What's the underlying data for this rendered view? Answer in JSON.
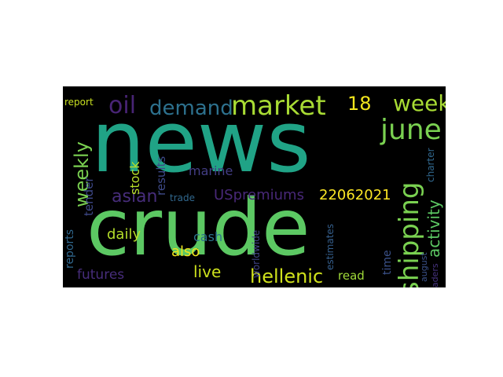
{
  "words": {
    "news": {
      "text": "news",
      "color": "#20a386"
    },
    "crude": {
      "text": "crude",
      "color": "#5cc863"
    },
    "market": {
      "text": "market",
      "color": "#a8db34"
    },
    "june": {
      "text": "june",
      "color": "#7ad151"
    },
    "shipping": {
      "text": "shipping",
      "color": "#7ad151"
    },
    "week": {
      "text": "week",
      "color": "#a8db34"
    },
    "weekly": {
      "text": "weekly",
      "color": "#7ad151"
    },
    "oil": {
      "text": "oil",
      "color": "#482475"
    },
    "demand": {
      "text": "demand",
      "color": "#2d718e"
    },
    "n18": {
      "text": "18",
      "color": "#f1e51d"
    },
    "activity": {
      "text": "activity",
      "color": "#5cc863"
    },
    "asian": {
      "text": "asian",
      "color": "#472d7b"
    },
    "uspremiums": {
      "text": "USpremiums",
      "color": "#482878"
    },
    "n22062021": {
      "text": "22062021",
      "color": "#fde725"
    },
    "hellenic": {
      "text": "hellenic",
      "color": "#d0e11c"
    },
    "live": {
      "text": "live",
      "color": "#cde11d"
    },
    "also": {
      "text": "also",
      "color": "#f1e51d"
    },
    "daily": {
      "text": "daily",
      "color": "#b5de2b"
    },
    "cash": {
      "text": "cash",
      "color": "#2c728e"
    },
    "futures": {
      "text": "futures",
      "color": "#472d7b"
    },
    "read": {
      "text": "read",
      "color": "#a0da39"
    },
    "stock": {
      "text": "stock",
      "color": "#b8de29"
    },
    "results": {
      "text": "results",
      "color": "#3e4a89"
    },
    "marine": {
      "text": "marine",
      "color": "#433e85"
    },
    "tender": {
      "text": "tender",
      "color": "#3e4989"
    },
    "reports": {
      "text": "reports",
      "color": "#31688e"
    },
    "report": {
      "text": "report",
      "color": "#c8e020"
    },
    "trade": {
      "text": "trade",
      "color": "#31688e"
    },
    "worldwide": {
      "text": "worldwide",
      "color": "#414487"
    },
    "time": {
      "text": "time",
      "color": "#3b528b"
    },
    "estimates": {
      "text": "estimates",
      "color": "#355f8d"
    },
    "august": {
      "text": "august",
      "color": "#3b528b"
    },
    "traders": {
      "text": "traders",
      "color": "#46337f"
    },
    "charter": {
      "text": "charter",
      "color": "#31688e"
    }
  }
}
